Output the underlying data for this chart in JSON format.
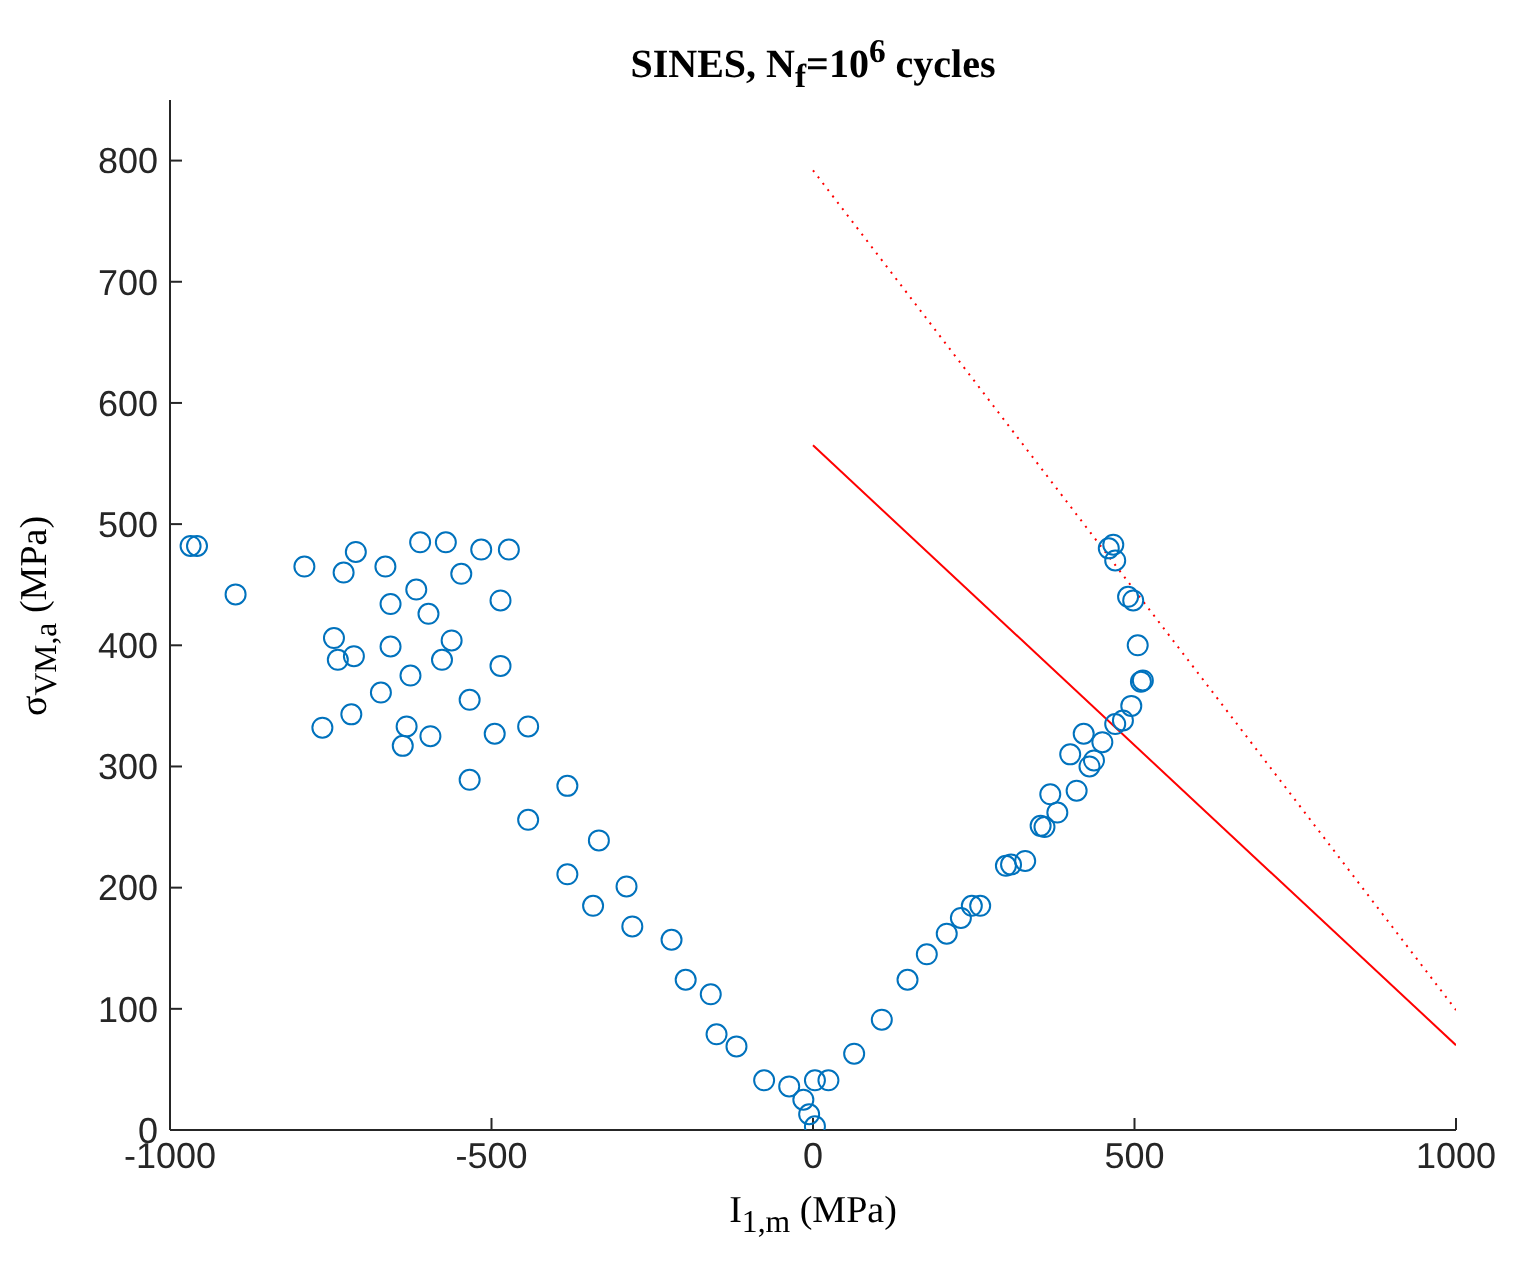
{
  "chart_data": {
    "type": "scatter",
    "title": "SINES, N$_{f}$=10$^{6}$ cycles",
    "xlabel": "I$_{1,m}$ (MPa)",
    "ylabel": "σ$_{VM,a}$ (MPa)",
    "xlim": [
      -1000,
      1000
    ],
    "xticks": [
      -1000,
      -500,
      0,
      500,
      1000
    ],
    "ylim": [
      0,
      850
    ],
    "yticks": [
      0,
      100,
      200,
      300,
      400,
      500,
      600,
      700,
      800
    ],
    "grid": false,
    "series": [
      {
        "color": "#0072bd",
        "marker": "circle",
        "x": [
          -968,
          -958,
          -898,
          -791,
          -730,
          -711,
          -665,
          -611,
          -571,
          -617,
          -657,
          -598,
          -745,
          -714,
          -739,
          -672,
          -718,
          -763,
          -657,
          -632,
          -638,
          -595,
          -626,
          -577,
          -547,
          -516,
          -473,
          -562,
          -534,
          -534,
          -486,
          -486,
          -495,
          -443,
          -443,
          -382,
          -382,
          -333,
          -342,
          -290,
          -281,
          -220,
          -198,
          -159,
          -150,
          -119,
          -76,
          -37,
          -6,
          3,
          3,
          -15,
          24,
          64,
          107,
          147,
          177,
          208,
          247,
          308,
          354,
          369,
          400,
          421,
          437,
          470,
          450,
          482,
          513,
          498,
          467,
          460,
          470,
          490,
          505,
          510,
          495,
          430,
          410,
          380,
          360,
          330,
          300,
          260,
          230
        ],
        "values": [
          482,
          482,
          442,
          465,
          460,
          477,
          465,
          485,
          485,
          446,
          434,
          426,
          406,
          391,
          388,
          361,
          343,
          332,
          399,
          333,
          317,
          325,
          375,
          388,
          459,
          479,
          479,
          404,
          289,
          355,
          437,
          383,
          327,
          333,
          256,
          284,
          211,
          239,
          185,
          201,
          168,
          157,
          124,
          112,
          79,
          69,
          41,
          36,
          13,
          41,
          3,
          25,
          41,
          63,
          91,
          124,
          145,
          162,
          185,
          219,
          251,
          277,
          310,
          327,
          305,
          335,
          320,
          338,
          371,
          437,
          483,
          480,
          470,
          440,
          400,
          370,
          350,
          300,
          280,
          262,
          250,
          222,
          218,
          185,
          175
        ]
      },
      {
        "type": "line",
        "color": "#ff0000",
        "line_style": "solid",
        "x": [
          0,
          1000
        ],
        "values": [
          565,
          70
        ]
      },
      {
        "type": "line",
        "color": "#ff0000",
        "line_style": "dotted",
        "x": [
          0,
          1000
        ],
        "values": [
          792,
          99
        ]
      }
    ]
  }
}
